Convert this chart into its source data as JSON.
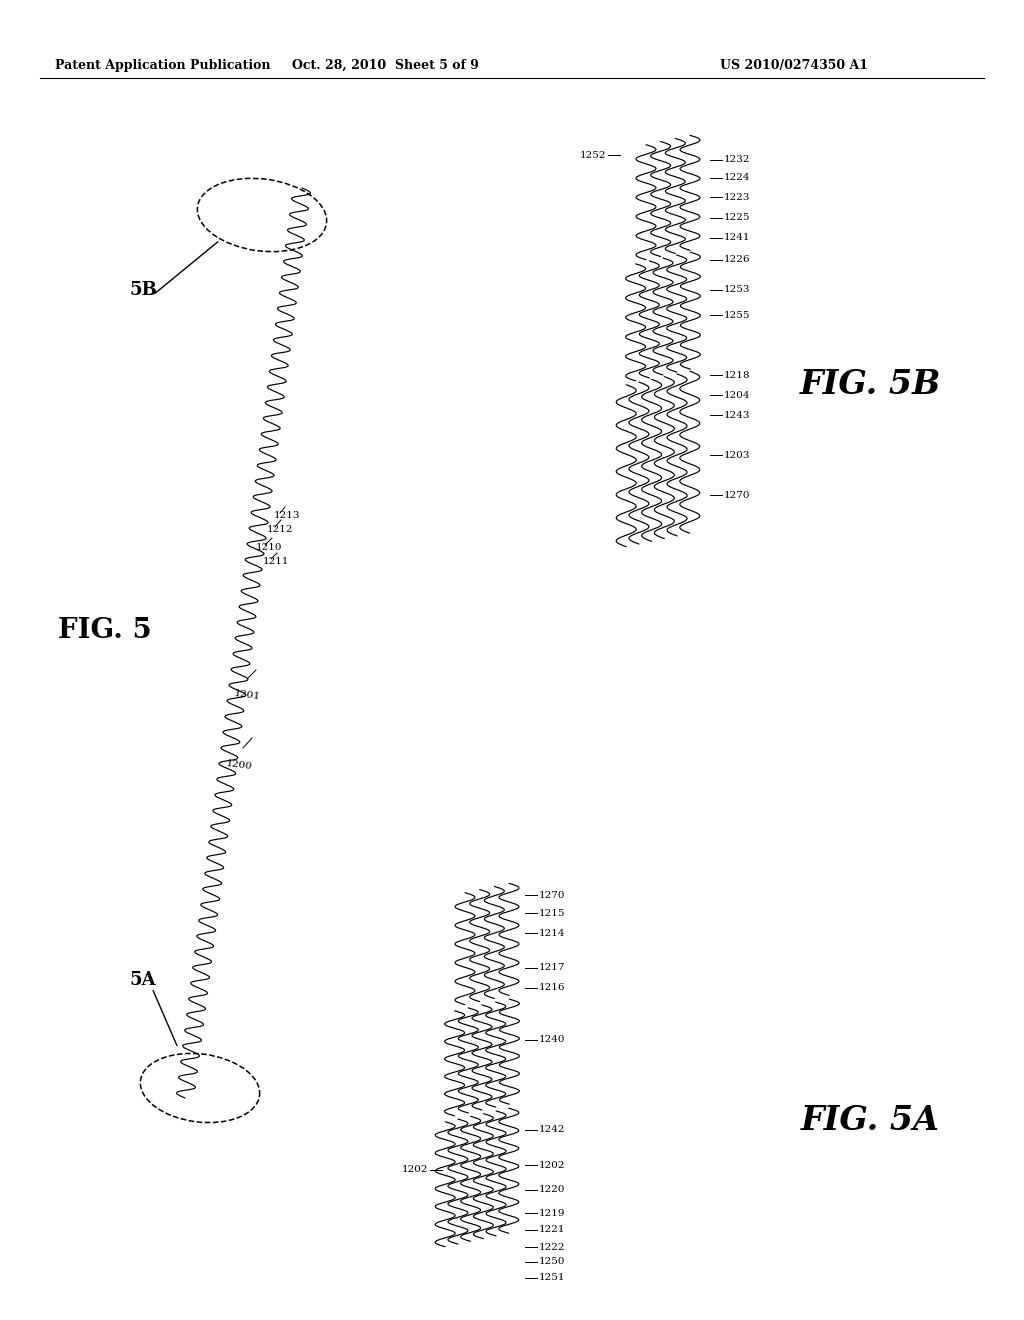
{
  "bg_color": "#ffffff",
  "header_left": "Patent Application Publication",
  "header_mid": "Oct. 28, 2010  Sheet 5 of 9",
  "header_right": "US 2010/0274350 A1",
  "fig5_label": "FIG. 5",
  "fig5a_label": "FIG. 5A",
  "fig5b_label": "FIG. 5B",
  "ref5a": "5A",
  "ref5b": "5B"
}
